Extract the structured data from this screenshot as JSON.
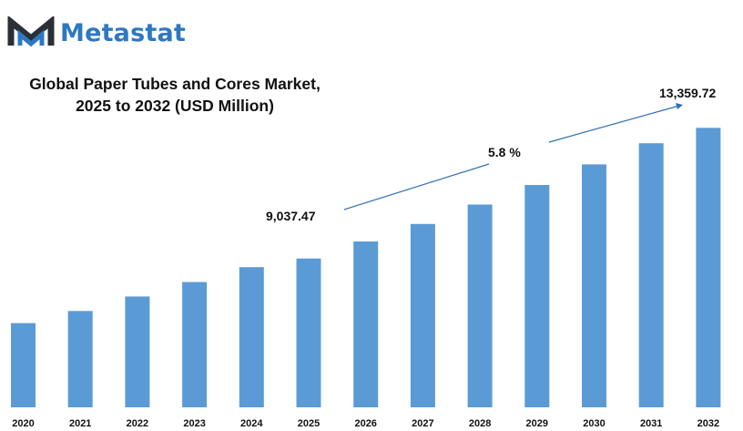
{
  "brand": {
    "name": "Metastat",
    "logo_icon": "metastat-m-icon",
    "accent": "#2e78c2"
  },
  "title_line1": "Global Paper Tubes and Cores Market,",
  "title_line2": "2025 to 2032 (USD Million)",
  "chart_data": {
    "type": "bar",
    "categories": [
      "2020",
      "2021",
      "2022",
      "2023",
      "2024",
      "2025",
      "2026",
      "2027",
      "2028",
      "2029",
      "2030",
      "2031",
      "2032"
    ],
    "values": [
      6900,
      7300,
      7780,
      8260,
      8750,
      9037.47,
      9600,
      10180,
      10820,
      11470,
      12150,
      12850,
      13359.72
    ],
    "bar_color": "#5b9bd5",
    "ylim": [
      4115,
      13850
    ],
    "grid": false,
    "annotations": {
      "start_label": "9,037.47",
      "end_label": "13,359.72",
      "cagr_label": "5.8 %"
    }
  }
}
